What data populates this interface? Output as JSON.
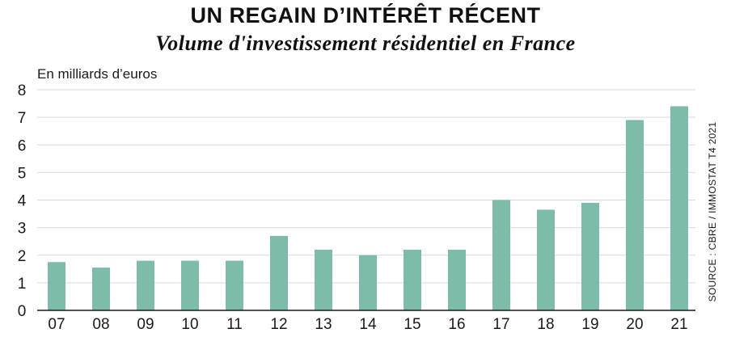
{
  "chart_data": {
    "type": "bar",
    "title": "UN REGAIN D’INTÉRÊT RÉCENT",
    "subtitle": "Volume d'investissement résidentiel en France",
    "ylabel": "En milliards d’euros",
    "xlabel": "",
    "source": "SOURCE : CBRE / IMMOSTAT T4 2021",
    "categories": [
      "07",
      "08",
      "09",
      "10",
      "11",
      "12",
      "13",
      "14",
      "15",
      "16",
      "17",
      "18",
      "19",
      "20",
      "21"
    ],
    "values": [
      1.75,
      1.55,
      1.8,
      1.8,
      1.8,
      2.7,
      2.2,
      2.0,
      2.2,
      2.2,
      4.0,
      3.65,
      3.9,
      6.9,
      7.4
    ],
    "ylim": [
      0,
      8
    ],
    "yticks": [
      0,
      1,
      2,
      3,
      4,
      5,
      6,
      7,
      8
    ],
    "grid": true,
    "legend": "none",
    "bar_color": "#7dbcaa",
    "grid_color": "#d9d9d9"
  }
}
